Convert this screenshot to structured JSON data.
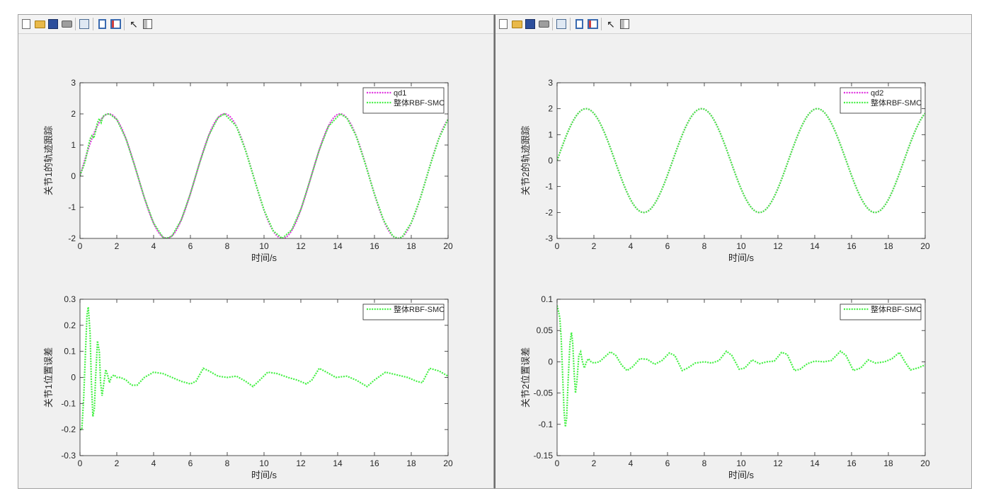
{
  "toolbar": {
    "items": [
      {
        "name": "new-figure",
        "icon": "new-document-icon"
      },
      {
        "name": "open-file",
        "icon": "open-folder-icon"
      },
      {
        "name": "save-figure",
        "icon": "save-disk-icon"
      },
      {
        "name": "print-figure",
        "icon": "printer-icon"
      },
      {
        "name": "link-plot",
        "icon": "linked-plot-icon"
      },
      {
        "name": "hide-plot-tools",
        "icon": "hide-tools-icon"
      },
      {
        "name": "show-plot-tools",
        "icon": "show-tools-icon"
      },
      {
        "name": "edit-plot",
        "icon": "arrow-cursor-icon"
      },
      {
        "name": "open-property-inspector",
        "icon": "property-inspector-icon"
      }
    ]
  },
  "colors": {
    "reference": "#e033e0",
    "tracking": "#44f044",
    "axes": "#262626",
    "figure_bg": "#f0f0f0"
  },
  "chart_data": [
    {
      "type": "line",
      "panel": "left-top",
      "ylabel": "关节1的轨迹跟踪",
      "xlabel": "时间/s",
      "xlim": [
        0,
        20
      ],
      "ylim": [
        -2,
        3
      ],
      "xticks": [
        0,
        2,
        4,
        6,
        8,
        10,
        12,
        14,
        16,
        18,
        20
      ],
      "yticks": [
        -2,
        -1,
        0,
        1,
        2,
        3
      ],
      "legend": "top-right",
      "series": [
        {
          "name": "qd1",
          "color": "#e033e0",
          "style": "dotted",
          "kind": "sine",
          "amplitude": 2,
          "angular_freq": 1,
          "phase": 0
        },
        {
          "name": "整体RBF-SMC",
          "color": "#44f044",
          "style": "dotted",
          "points": [
            [
              0,
              0.02
            ],
            [
              0.1,
              0.18
            ],
            [
              0.2,
              0.33
            ],
            [
              0.3,
              0.52
            ],
            [
              0.45,
              0.95
            ],
            [
              0.55,
              1.2
            ],
            [
              0.65,
              1.3
            ],
            [
              0.75,
              1.22
            ],
            [
              0.85,
              1.45
            ],
            [
              0.95,
              1.72
            ],
            [
              1.05,
              1.85
            ],
            [
              1.15,
              1.72
            ],
            [
              1.25,
              1.92
            ],
            [
              1.4,
              1.98
            ],
            [
              1.6,
              2.0
            ],
            [
              2,
              1.82
            ],
            [
              2.5,
              1.2
            ],
            [
              3,
              0.28
            ],
            [
              3.5,
              -0.7
            ],
            [
              4,
              -1.51
            ],
            [
              4.5,
              -1.96
            ],
            [
              4.71,
              -2.0
            ],
            [
              5,
              -1.92
            ],
            [
              5.5,
              -1.41
            ],
            [
              6,
              -0.56
            ],
            [
              6.5,
              0.43
            ],
            [
              7,
              1.31
            ],
            [
              7.5,
              1.88
            ],
            [
              7.85,
              2.0
            ],
            [
              8.5,
              1.6
            ],
            [
              9,
              0.82
            ],
            [
              9.5,
              -0.15
            ],
            [
              10,
              -1.09
            ],
            [
              10.5,
              -1.76
            ],
            [
              10.99,
              -2.0
            ],
            [
              11.5,
              -1.73
            ],
            [
              12,
              -1.07
            ],
            [
              12.5,
              -0.13
            ],
            [
              13,
              0.84
            ],
            [
              13.5,
              1.6
            ],
            [
              14.14,
              2.0
            ],
            [
              14.5,
              1.87
            ],
            [
              15,
              1.3
            ],
            [
              15.5,
              0.4
            ],
            [
              16,
              -0.58
            ],
            [
              16.5,
              -1.42
            ],
            [
              17,
              -1.93
            ],
            [
              17.28,
              -2.0
            ],
            [
              17.5,
              -1.96
            ],
            [
              18,
              -1.5
            ],
            [
              18.5,
              -0.7
            ],
            [
              19,
              0.3
            ],
            [
              19.5,
              1.21
            ],
            [
              20,
              1.83
            ]
          ]
        }
      ]
    },
    {
      "type": "line",
      "panel": "left-bottom",
      "ylabel": "关节1位置误差",
      "xlabel": "时间/s",
      "xlim": [
        0,
        20
      ],
      "ylim": [
        -0.3,
        0.3
      ],
      "xticks": [
        0,
        2,
        4,
        6,
        8,
        10,
        12,
        14,
        16,
        18,
        20
      ],
      "yticks": [
        -0.3,
        -0.2,
        -0.1,
        0,
        0.1,
        0.2,
        0.3
      ],
      "yticklabels": [
        "-0.3",
        "-0.2",
        "-0.1",
        "0",
        "0.1",
        "0.2",
        "0.3"
      ],
      "legend": "top-right",
      "series": [
        {
          "name": "整体RBF-SMC",
          "color": "#44f044",
          "style": "dotted",
          "points": [
            [
              0,
              -0.2
            ],
            [
              0.1,
              -0.2
            ],
            [
              0.2,
              -0.08
            ],
            [
              0.3,
              0.1
            ],
            [
              0.38,
              0.24
            ],
            [
              0.45,
              0.27
            ],
            [
              0.55,
              0.17
            ],
            [
              0.62,
              -0.02
            ],
            [
              0.7,
              -0.15
            ],
            [
              0.78,
              -0.12
            ],
            [
              0.85,
              0.0
            ],
            [
              0.95,
              0.14
            ],
            [
              1.05,
              0.1
            ],
            [
              1.12,
              -0.02
            ],
            [
              1.2,
              -0.07
            ],
            [
              1.3,
              -0.02
            ],
            [
              1.4,
              0.03
            ],
            [
              1.5,
              0.01
            ],
            [
              1.6,
              -0.02
            ],
            [
              1.7,
              0.0
            ],
            [
              1.85,
              0.01
            ],
            [
              2.0,
              0.0
            ],
            [
              2.2,
              0.0
            ],
            [
              2.5,
              -0.01
            ],
            [
              2.8,
              -0.03
            ],
            [
              3.1,
              -0.03
            ],
            [
              3.5,
              0.0
            ],
            [
              4.0,
              0.02
            ],
            [
              4.5,
              0.015
            ],
            [
              5.0,
              0.0
            ],
            [
              5.5,
              -0.015
            ],
            [
              6.0,
              -0.025
            ],
            [
              6.3,
              -0.015
            ],
            [
              6.7,
              0.035
            ],
            [
              7.0,
              0.025
            ],
            [
              7.5,
              0.005
            ],
            [
              8.0,
              0.0
            ],
            [
              8.5,
              0.005
            ],
            [
              9.0,
              -0.015
            ],
            [
              9.4,
              -0.035
            ],
            [
              9.7,
              -0.015
            ],
            [
              10.2,
              0.02
            ],
            [
              10.7,
              0.015
            ],
            [
              11.3,
              0.0
            ],
            [
              11.8,
              -0.01
            ],
            [
              12.3,
              -0.025
            ],
            [
              12.6,
              -0.01
            ],
            [
              13.0,
              0.035
            ],
            [
              13.4,
              0.02
            ],
            [
              13.9,
              0.0
            ],
            [
              14.5,
              0.005
            ],
            [
              15.0,
              -0.01
            ],
            [
              15.6,
              -0.035
            ],
            [
              16.0,
              -0.01
            ],
            [
              16.6,
              0.02
            ],
            [
              17.2,
              0.01
            ],
            [
              17.8,
              0.0
            ],
            [
              18.3,
              -0.015
            ],
            [
              18.6,
              -0.02
            ],
            [
              19.0,
              0.035
            ],
            [
              19.5,
              0.025
            ],
            [
              20.0,
              0.005
            ]
          ]
        }
      ]
    },
    {
      "type": "line",
      "panel": "right-top",
      "ylabel": "关节2的轨迹跟踪",
      "xlabel": "时间/s",
      "xlim": [
        0,
        20
      ],
      "ylim": [
        -3,
        3
      ],
      "xticks": [
        0,
        2,
        4,
        6,
        8,
        10,
        12,
        14,
        16,
        18,
        20
      ],
      "yticks": [
        -3,
        -2,
        -1,
        0,
        1,
        2,
        3
      ],
      "legend": "top-right",
      "series": [
        {
          "name": "qd2",
          "color": "#e033e0",
          "style": "dotted",
          "kind": "sine",
          "amplitude": 2,
          "angular_freq": 1,
          "phase": 0
        },
        {
          "name": "整体RBF-SMC",
          "color": "#44f044",
          "style": "dotted",
          "kind": "sine",
          "amplitude": 2,
          "angular_freq": 1,
          "phase": 0
        }
      ]
    },
    {
      "type": "line",
      "panel": "right-bottom",
      "ylabel": "关节2位置误差",
      "xlabel": "时间/s",
      "xlim": [
        0,
        20
      ],
      "ylim": [
        -0.15,
        0.1
      ],
      "xticks": [
        0,
        2,
        4,
        6,
        8,
        10,
        12,
        14,
        16,
        18,
        20
      ],
      "yticks": [
        -0.15,
        -0.1,
        -0.05,
        0,
        0.05,
        0.1
      ],
      "yticklabels": [
        "-0.15",
        "-0.1",
        "-0.05",
        "0",
        "0.05",
        "0.1"
      ],
      "legend": "top-right",
      "series": [
        {
          "name": "整体RBF-SMC",
          "color": "#44f044",
          "style": "dotted",
          "points": [
            [
              0,
              0.09
            ],
            [
              0.08,
              0.08
            ],
            [
              0.15,
              0.07
            ],
            [
              0.22,
              0.04
            ],
            [
              0.3,
              -0.02
            ],
            [
              0.38,
              -0.08
            ],
            [
              0.45,
              -0.104
            ],
            [
              0.52,
              -0.09
            ],
            [
              0.6,
              -0.03
            ],
            [
              0.7,
              0.03
            ],
            [
              0.78,
              0.047
            ],
            [
              0.85,
              0.03
            ],
            [
              0.93,
              -0.02
            ],
            [
              1.0,
              -0.05
            ],
            [
              1.08,
              -0.03
            ],
            [
              1.18,
              0.01
            ],
            [
              1.28,
              0.016
            ],
            [
              1.38,
              0.0
            ],
            [
              1.48,
              -0.01
            ],
            [
              1.6,
              0.0
            ],
            [
              1.7,
              0.005
            ],
            [
              1.85,
              0.0
            ],
            [
              2.0,
              -0.002
            ],
            [
              2.3,
              0.0
            ],
            [
              2.6,
              0.008
            ],
            [
              2.9,
              0.016
            ],
            [
              3.2,
              0.01
            ],
            [
              3.5,
              -0.005
            ],
            [
              3.8,
              -0.014
            ],
            [
              4.1,
              -0.008
            ],
            [
              4.5,
              0.005
            ],
            [
              4.9,
              0.004
            ],
            [
              5.3,
              -0.004
            ],
            [
              5.7,
              0.002
            ],
            [
              6.1,
              0.014
            ],
            [
              6.4,
              0.01
            ],
            [
              6.8,
              -0.014
            ],
            [
              7.1,
              -0.01
            ],
            [
              7.5,
              -0.002
            ],
            [
              8.0,
              0.0
            ],
            [
              8.4,
              -0.002
            ],
            [
              8.8,
              0.002
            ],
            [
              9.2,
              0.017
            ],
            [
              9.5,
              0.01
            ],
            [
              9.9,
              -0.012
            ],
            [
              10.2,
              -0.01
            ],
            [
              10.6,
              0.003
            ],
            [
              11.0,
              -0.003
            ],
            [
              11.4,
              0.0
            ],
            [
              11.8,
              0.001
            ],
            [
              12.2,
              0.015
            ],
            [
              12.5,
              0.012
            ],
            [
              12.9,
              -0.014
            ],
            [
              13.2,
              -0.012
            ],
            [
              13.6,
              -0.003
            ],
            [
              14.0,
              0.001
            ],
            [
              14.5,
              0.0
            ],
            [
              14.9,
              0.002
            ],
            [
              15.4,
              0.017
            ],
            [
              15.7,
              0.01
            ],
            [
              16.1,
              -0.014
            ],
            [
              16.5,
              -0.01
            ],
            [
              16.9,
              0.003
            ],
            [
              17.3,
              -0.002
            ],
            [
              17.8,
              0.0
            ],
            [
              18.2,
              0.005
            ],
            [
              18.6,
              0.015
            ],
            [
              18.9,
              0.0
            ],
            [
              19.2,
              -0.013
            ],
            [
              19.6,
              -0.01
            ],
            [
              20.0,
              -0.005
            ]
          ]
        }
      ]
    }
  ]
}
